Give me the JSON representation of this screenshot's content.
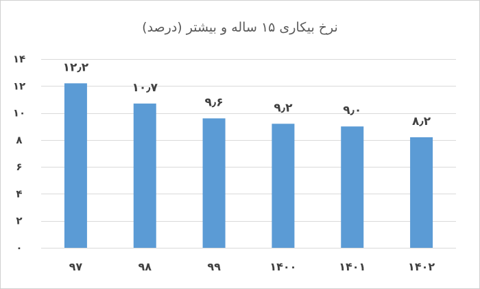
{
  "chart_data": {
    "type": "bar",
    "title": "نرخ بیکاری ۱۵ ساله و بیشتر (درصد)",
    "xlabel": "",
    "ylabel": "",
    "categories": [
      "۹۷",
      "۹۸",
      "۹۹",
      "۱۴۰۰",
      "۱۴۰۱",
      "۱۴۰۲"
    ],
    "values": [
      12.2,
      10.7,
      9.6,
      9.2,
      9.0,
      8.2
    ],
    "data_labels": [
      "۱۲٫۲",
      "۱۰٫۷",
      "۹٫۶",
      "۹٫۲",
      "۹٫۰",
      "۸٫۲"
    ],
    "ylim": [
      0,
      14
    ],
    "yticks": [
      0,
      2,
      4,
      6,
      8,
      10,
      12,
      14
    ],
    "ytick_labels": [
      "۰",
      "۲",
      "۴",
      "۶",
      "۸",
      "۱۰",
      "۱۲",
      "۱۴"
    ],
    "grid": true,
    "legend": "none",
    "colors": {
      "bar": "#5b9bd5",
      "grid": "#d9d9d9",
      "text": "#404040",
      "title": "#595959"
    }
  }
}
